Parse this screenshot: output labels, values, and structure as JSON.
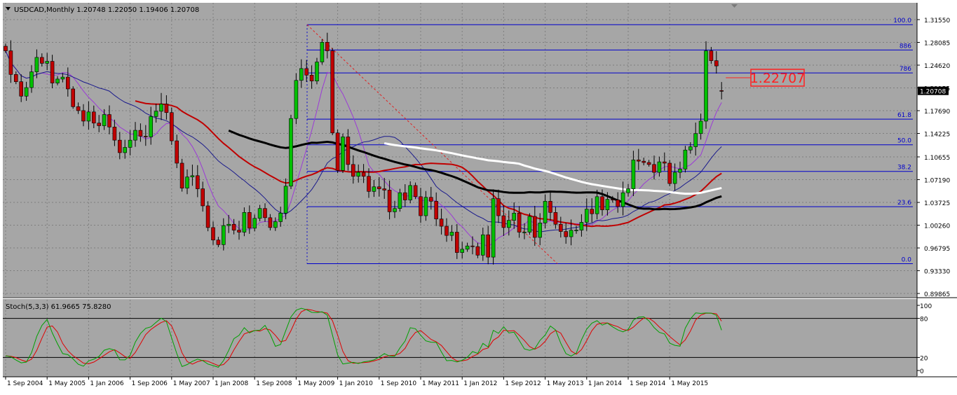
{
  "window": {
    "title": "USDCAD,Monthly  1.20748 1.22050 1.19406 1.20708"
  },
  "price_tag": "1.22707",
  "current_price_label": "1.20708",
  "colors": {
    "background": "#a6a6a6",
    "bull": "#00c000",
    "bear": "#c00000",
    "fib_lines": "#0000cc",
    "ma_black": "#000000",
    "ma_white": "#ffffff",
    "ma_red": "#c00000",
    "ma_navy": "#1a1a8c",
    "ma_violet": "#9b3ad6",
    "stoch_main": "#00a000",
    "stoch_signal": "#e00000",
    "callout": "#ff2020"
  },
  "chart_data": [
    {
      "type": "candlestick",
      "title": "USDCAD,Monthly  1.20748 1.22050 1.19406 1.20708",
      "symbol": "USDCAD",
      "timeframe": "Monthly",
      "last_bar": {
        "open": 1.20748,
        "high": 1.2205,
        "low": 1.19406,
        "close": 1.20708
      },
      "x_tick_labels": [
        "1 Sep 2004",
        "1 May 2005",
        "1 Jan 2006",
        "1 Sep 2006",
        "1 May 2007",
        "1 Jan 2008",
        "1 Sep 2008",
        "1 May 2009",
        "1 Jan 2010",
        "1 Sep 2010",
        "1 May 2011",
        "1 Jan 2012",
        "1 Sep 2012",
        "1 May 2013",
        "1 Jan 2014",
        "1 Sep 2014",
        "1 May 2015"
      ],
      "y_tick_labels": [
        "1.31550",
        "1.28085",
        "1.24620",
        "1.21155",
        "1.17690",
        "1.14225",
        "1.10655",
        "1.07190",
        "1.03725",
        "1.00260",
        "0.96795",
        "0.93330",
        "0.89865"
      ],
      "ylim": [
        0.8987,
        1.3155
      ],
      "grid": true,
      "fibonacci_levels": [
        {
          "label": "100.0",
          "price": 1.3078
        },
        {
          "label": "886",
          "price": 1.2693
        },
        {
          "label": "786",
          "price": 1.2344
        },
        {
          "label": "61.8",
          "price": 1.164
        },
        {
          "label": "50.0",
          "price": 1.125
        },
        {
          "label": "38.2",
          "price": 1.0845
        },
        {
          "label": "23.6",
          "price": 1.0307
        },
        {
          "label": "0.0",
          "price": 0.944
        }
      ],
      "closes": [
        1.268,
        1.232,
        1.221,
        1.199,
        1.212,
        1.236,
        1.258,
        1.249,
        1.252,
        1.219,
        1.225,
        1.228,
        1.21,
        1.183,
        1.177,
        1.161,
        1.175,
        1.158,
        1.154,
        1.171,
        1.152,
        1.132,
        1.113,
        1.121,
        1.132,
        1.147,
        1.138,
        1.137,
        1.168,
        1.176,
        1.187,
        1.174,
        1.131,
        1.097,
        1.059,
        1.076,
        1.078,
        1.058,
        1.032,
        0.999,
        0.98,
        0.973,
        1.002,
        1.004,
        0.995,
        0.992,
        1.022,
        0.998,
        1.013,
        1.028,
        1.014,
        0.999,
        1.008,
        1.021,
        1.062,
        1.165,
        1.223,
        1.241,
        1.231,
        1.222,
        1.251,
        1.281,
        1.268,
        1.143,
        1.086,
        1.137,
        1.095,
        1.077,
        1.083,
        1.077,
        1.054,
        1.061,
        1.058,
        1.056,
        1.023,
        1.028,
        1.052,
        1.041,
        1.063,
        1.046,
        1.017,
        1.045,
        1.039,
        1.012,
        1.001,
        0.987,
        0.992,
        0.961,
        0.966,
        0.971,
        0.97,
        0.957,
        0.988,
        0.954,
        1.043,
        1.017,
        0.999,
        1.01,
        1.021,
        0.992,
        0.992,
        1.016,
        0.984,
        1.006,
        1.039,
        1.022,
        1.004,
        0.993,
        0.985,
        0.995,
        0.995,
        1.007,
        1.027,
        1.02,
        1.046,
        1.026,
        1.042,
        1.041,
        1.031,
        1.052,
        1.058,
        1.102,
        1.1,
        1.098,
        1.095,
        1.083,
        1.099,
        1.097,
        1.066,
        1.083,
        1.088,
        1.117,
        1.122,
        1.142,
        1.161,
        1.268,
        1.253,
        1.245,
        1.207
      ]
    },
    {
      "type": "line",
      "title": "Stoch(5,3,3) 61.9665 75.8280",
      "name": "Stoch(5,3,3)",
      "main_value": 61.9665,
      "signal_value": 75.828,
      "ylim": [
        0,
        100
      ],
      "y_tick_labels": [
        "100",
        "80",
        "20",
        "0"
      ],
      "levels": [
        80,
        20
      ]
    }
  ]
}
